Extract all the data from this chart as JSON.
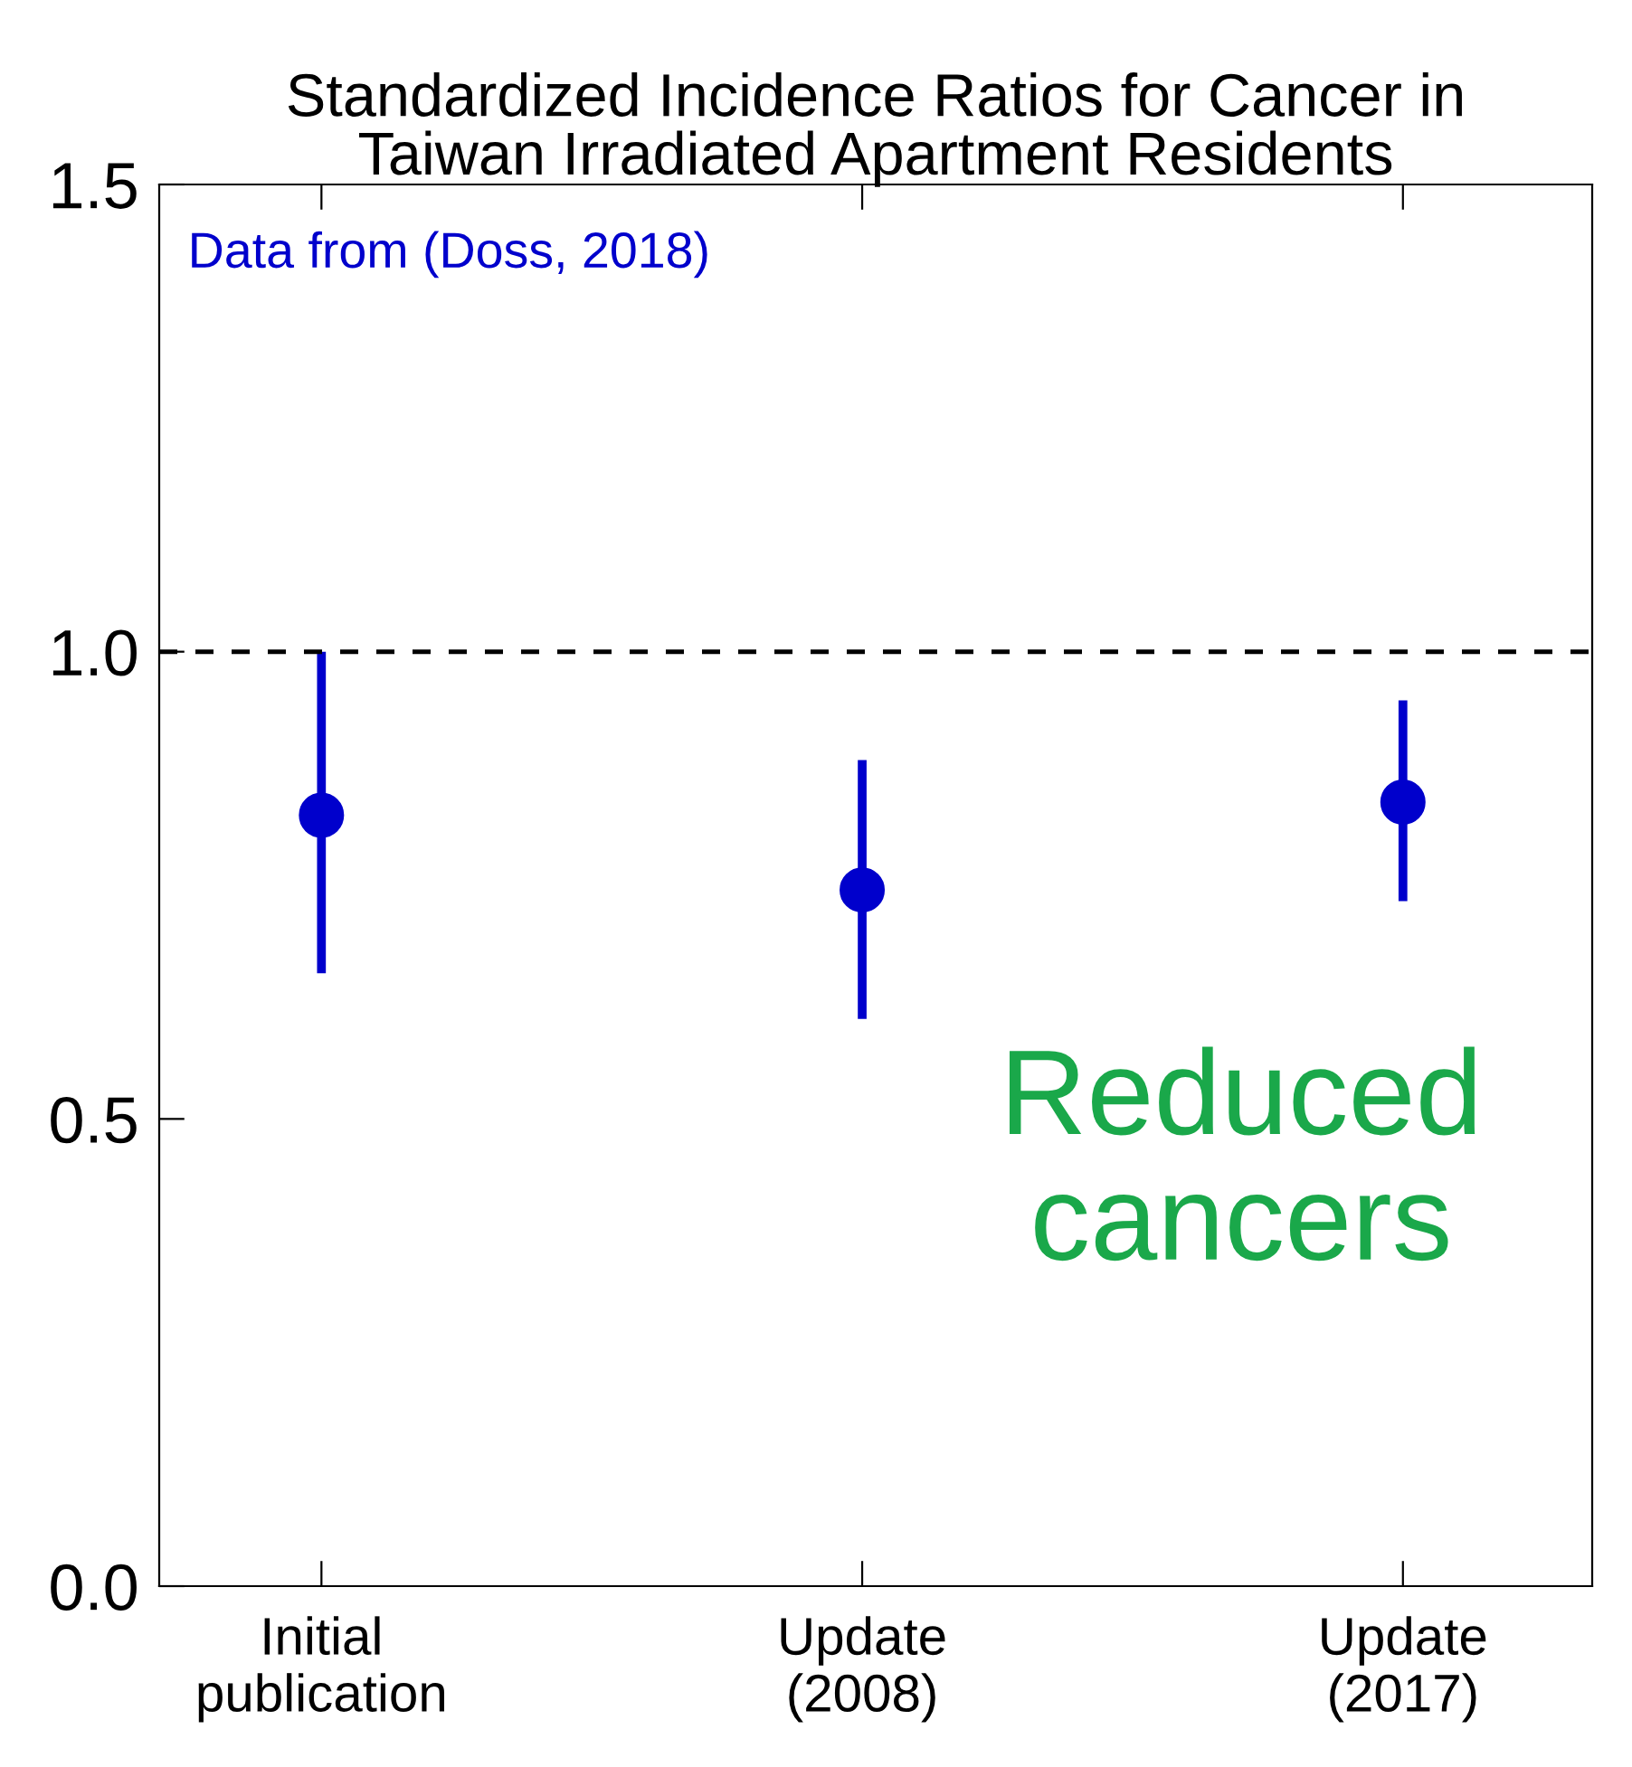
{
  "chart_data": {
    "type": "scatter",
    "title": "Standardized Incidence Ratios for Cancer in\nTaiwan Irradiated Apartment Residents",
    "categories": [
      "Initial\npublication",
      "Update\n(2008)",
      "Update\n(2017)"
    ],
    "series": [
      {
        "color": "#0000cc",
        "values": [
          0.825,
          0.745,
          0.839
        ],
        "errors": [
          [
            0.656,
            1.0
          ],
          [
            0.607,
            0.884
          ],
          [
            0.733,
            0.948
          ]
        ]
      }
    ],
    "marker": "circle",
    "ylim": [
      0,
      1.5
    ],
    "yticks": [
      {
        "value": 0,
        "label": "0.0"
      },
      0.5,
      {
        "value": 1,
        "label": "1.0"
      },
      1.5
    ],
    "ref_lines": [
      {
        "axis": "y",
        "value": 1,
        "color": "#000000",
        "line_style": "dashed"
      }
    ],
    "annotations": [
      "Data from (Doss, 2018)",
      "Reduced\ncancers"
    ],
    "grid": false,
    "legend": false
  }
}
